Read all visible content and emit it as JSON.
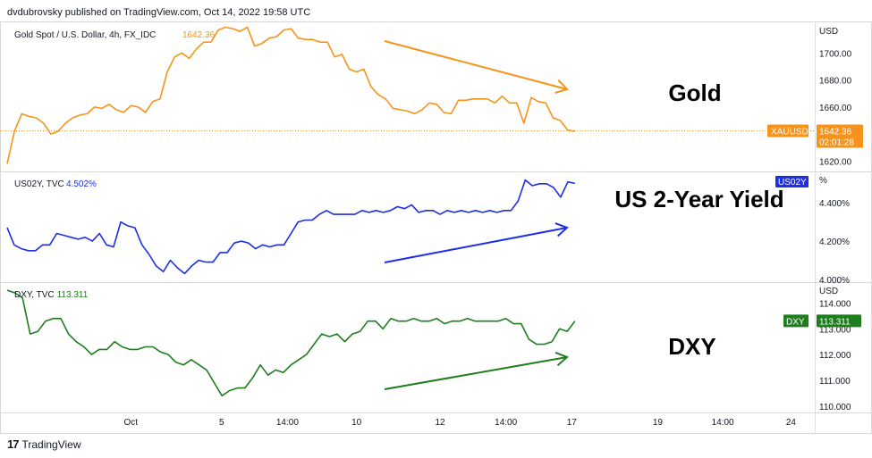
{
  "header": {
    "published": "dvdubrovsky published on TradingView.com, Oct 14, 2022 19:58 UTC"
  },
  "footer": {
    "logo": "17",
    "brand": "TradingView"
  },
  "chart_data": [
    {
      "type": "line",
      "title": "Gold Spot / U.S. Dollar, 4h, FX_IDC",
      "last_value_label": "1642.36",
      "annotation": "Gold",
      "axis_unit": "USD",
      "ylim": [
        1613,
        1722
      ],
      "yticks": [
        "1700.00",
        "1680.00",
        "1660.00",
        "1640.00",
        "1620.00"
      ],
      "ytick_values": [
        1700,
        1680,
        1660,
        1640,
        1620
      ],
      "price_tag": {
        "symbol": "XAUUSD",
        "value": "1642.36",
        "countdown": "02:01:28",
        "level": 1642.36
      },
      "color": "#f7931a",
      "values": [
        1618,
        1642,
        1655,
        1653,
        1652,
        1648,
        1640,
        1642,
        1648,
        1652,
        1654,
        1655,
        1660,
        1659,
        1662,
        1658,
        1656,
        1661,
        1660,
        1656,
        1664,
        1666,
        1686,
        1697,
        1700,
        1696,
        1703,
        1708,
        1708,
        1717,
        1719,
        1718,
        1716,
        1719,
        1705,
        1707,
        1711,
        1712,
        1717,
        1718,
        1711,
        1710,
        1710,
        1708,
        1708,
        1697,
        1699,
        1688,
        1686,
        1688,
        1675,
        1669,
        1666,
        1659,
        1658,
        1657,
        1655,
        1658,
        1663,
        1662,
        1656,
        1655,
        1665,
        1665,
        1666,
        1666,
        1666,
        1663,
        1668,
        1663,
        1663,
        1648,
        1667,
        1664,
        1663,
        1652,
        1650,
        1643,
        1642
      ]
    },
    {
      "type": "line",
      "title": "US02Y, TVC",
      "last_value_label": "4.502%",
      "annotation": "US 2-Year Yield",
      "axis_unit": "%",
      "ylim": [
        3.99,
        4.56
      ],
      "yticks": [
        "4.400%",
        "4.200%",
        "4.000%"
      ],
      "ytick_values": [
        4.4,
        4.2,
        4.0
      ],
      "price_tag": {
        "symbol": "US02Y"
      },
      "color": "#1c2ee8",
      "values": [
        4.27,
        4.18,
        4.16,
        4.15,
        4.15,
        4.18,
        4.18,
        4.24,
        4.23,
        4.22,
        4.21,
        4.22,
        4.2,
        4.24,
        4.18,
        4.17,
        4.3,
        4.28,
        4.27,
        4.18,
        4.13,
        4.07,
        4.04,
        4.1,
        4.06,
        4.03,
        4.07,
        4.1,
        4.09,
        4.09,
        4.14,
        4.14,
        4.19,
        4.2,
        4.19,
        4.16,
        4.18,
        4.17,
        4.18,
        4.18,
        4.24,
        4.3,
        4.31,
        4.31,
        4.34,
        4.36,
        4.34,
        4.34,
        4.34,
        4.34,
        4.36,
        4.35,
        4.36,
        4.35,
        4.36,
        4.38,
        4.37,
        4.39,
        4.35,
        4.36,
        4.36,
        4.34,
        4.36,
        4.35,
        4.36,
        4.35,
        4.36,
        4.35,
        4.36,
        4.35,
        4.36,
        4.36,
        4.41,
        4.52,
        4.49,
        4.5,
        4.5,
        4.48,
        4.43,
        4.51,
        4.502
      ]
    },
    {
      "type": "line",
      "title": "DXY, TVC",
      "last_value_label": "113.311",
      "annotation": "DXY",
      "axis_unit": "USD",
      "ylim": [
        109.82,
        114.78
      ],
      "yticks": [
        "114.000",
        "113.000",
        "112.000",
        "111.000",
        "110.000"
      ],
      "ytick_values": [
        114,
        113,
        112,
        111,
        110
      ],
      "price_tag": {
        "symbol": "DXY",
        "value": "113.311",
        "level": 113.311
      },
      "color": "#1e7e1e",
      "values": [
        114.5,
        114.4,
        114.2,
        112.8,
        112.9,
        113.3,
        113.4,
        113.4,
        112.8,
        112.5,
        112.3,
        112,
        112.2,
        112.2,
        112.5,
        112.3,
        112.2,
        112.2,
        112.3,
        112.3,
        112.1,
        112,
        111.7,
        111.6,
        111.8,
        111.6,
        111.4,
        110.9,
        110.4,
        110.6,
        110.7,
        110.7,
        111.1,
        111.6,
        111.2,
        111.4,
        111.3,
        111.6,
        111.8,
        112,
        112.4,
        112.8,
        112.7,
        112.8,
        112.5,
        112.8,
        112.9,
        113.3,
        113.3,
        113.0,
        113.4,
        113.3,
        113.3,
        113.4,
        113.3,
        113.3,
        113.4,
        113.2,
        113.3,
        113.3,
        113.4,
        113.3,
        113.3,
        113.3,
        113.3,
        113.4,
        113.2,
        113.2,
        112.6,
        112.4,
        112.4,
        112.5,
        113,
        112.9,
        113.3
      ]
    }
  ],
  "x_axis": {
    "ticks": [
      {
        "label": "Oct",
        "pos": 0.154
      },
      {
        "label": "5",
        "pos": 0.267
      },
      {
        "label": "14:00",
        "pos": 0.349
      },
      {
        "label": "10",
        "pos": 0.435
      },
      {
        "label": "12",
        "pos": 0.539
      },
      {
        "label": "14:00",
        "pos": 0.621
      },
      {
        "label": "17",
        "pos": 0.703
      },
      {
        "label": "19",
        "pos": 0.81
      },
      {
        "label": "14:00",
        "pos": 0.891
      },
      {
        "label": "24",
        "pos": 0.976
      }
    ]
  }
}
